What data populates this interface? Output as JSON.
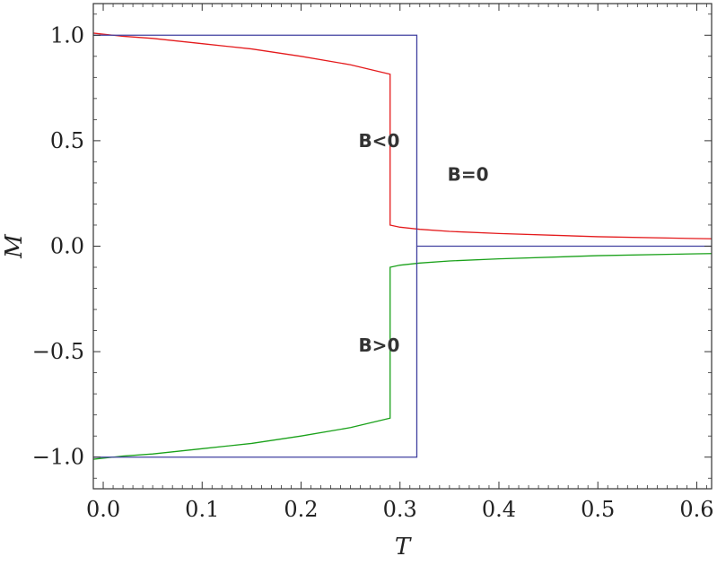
{
  "chart_data": {
    "type": "line",
    "title": "",
    "xlabel": "T",
    "ylabel": "M",
    "xlim": [
      -0.01,
      0.615
    ],
    "ylim": [
      -1.15,
      1.15
    ],
    "x_ticks": [
      0.0,
      0.1,
      0.2,
      0.3,
      0.4,
      0.5,
      0.6
    ],
    "x_tick_labels": [
      "0.0",
      "0.1",
      "0.2",
      "0.3",
      "0.4",
      "0.5",
      "0.6"
    ],
    "y_ticks": [
      1.0,
      0.5,
      0.0,
      -0.5,
      -1.0
    ],
    "y_tick_labels": [
      "1.0",
      "0.5",
      "0.0",
      "−0.5",
      "−1.0"
    ],
    "grid": false,
    "colors": {
      "B<0": "#e41a1c",
      "B>0": "#1aa11a",
      "B=0": "#4040a0",
      "frame": "#333333"
    },
    "series": [
      {
        "name": "B<0",
        "points": [
          [
            -0.01,
            1.01
          ],
          [
            0.02,
            0.995
          ],
          [
            0.05,
            0.985
          ],
          [
            0.1,
            0.96
          ],
          [
            0.15,
            0.935
          ],
          [
            0.2,
            0.9
          ],
          [
            0.25,
            0.86
          ],
          [
            0.29,
            0.815
          ],
          [
            0.29,
            0.1
          ],
          [
            0.3,
            0.09
          ],
          [
            0.32,
            0.08
          ],
          [
            0.35,
            0.07
          ],
          [
            0.4,
            0.06
          ],
          [
            0.5,
            0.045
          ],
          [
            0.6,
            0.036
          ],
          [
            0.615,
            0.035
          ]
        ]
      },
      {
        "name": "B>0",
        "points": [
          [
            -0.01,
            -1.01
          ],
          [
            0.02,
            -0.995
          ],
          [
            0.05,
            -0.985
          ],
          [
            0.1,
            -0.96
          ],
          [
            0.15,
            -0.935
          ],
          [
            0.2,
            -0.9
          ],
          [
            0.25,
            -0.86
          ],
          [
            0.29,
            -0.815
          ],
          [
            0.29,
            -0.1
          ],
          [
            0.3,
            -0.09
          ],
          [
            0.32,
            -0.08
          ],
          [
            0.35,
            -0.07
          ],
          [
            0.4,
            -0.06
          ],
          [
            0.5,
            -0.045
          ],
          [
            0.6,
            -0.036
          ],
          [
            0.615,
            -0.035
          ]
        ]
      },
      {
        "name": "B=0",
        "points": [
          [
            -0.01,
            1.0
          ],
          [
            0.317,
            1.0
          ],
          [
            0.317,
            0.0
          ],
          [
            0.615,
            0.0
          ]
        ]
      },
      {
        "name": "B=0",
        "points": [
          [
            -0.01,
            -1.0
          ],
          [
            0.317,
            -1.0
          ],
          [
            0.317,
            0.0
          ]
        ]
      }
    ],
    "annotations": [
      {
        "text": "B<0",
        "x": 0.258,
        "y": 0.5
      },
      {
        "text": "B=0",
        "x": 0.348,
        "y": 0.34
      },
      {
        "text": "B>0",
        "x": 0.258,
        "y": -0.47
      }
    ]
  }
}
